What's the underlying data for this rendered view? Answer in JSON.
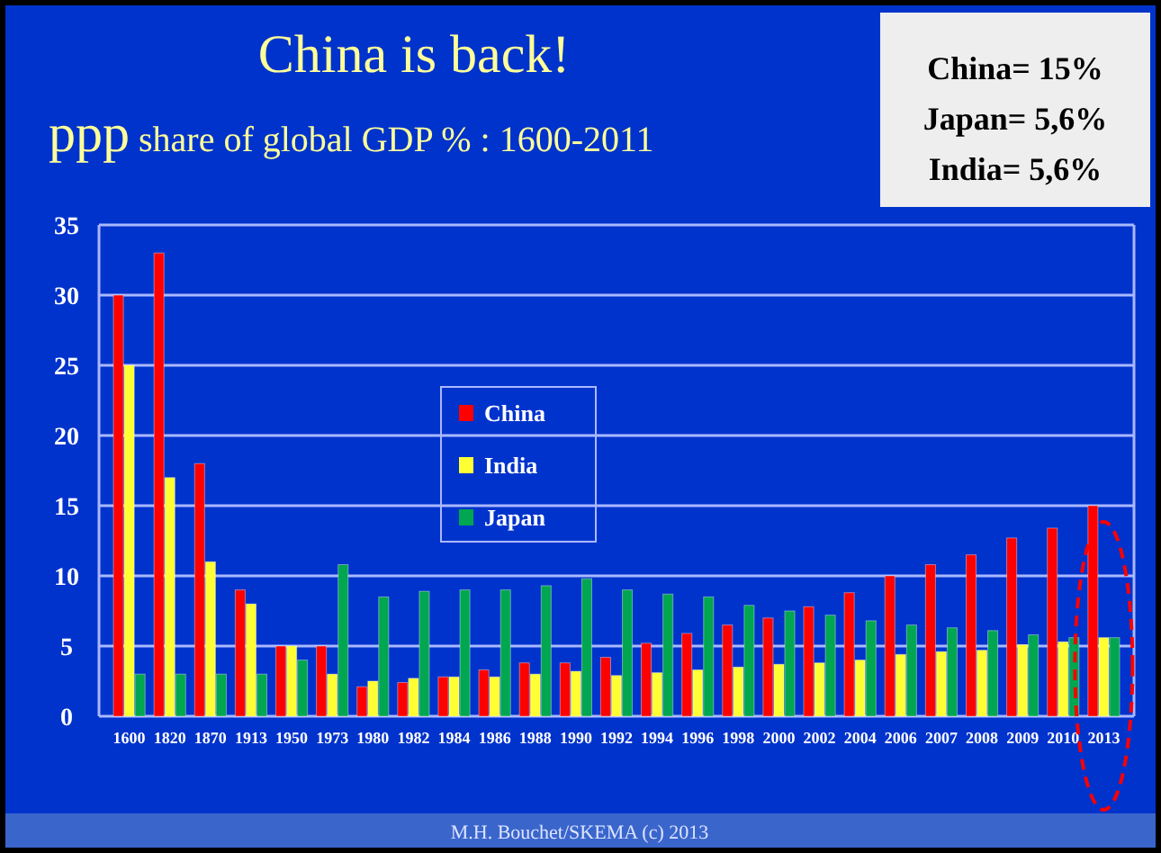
{
  "chart_data": {
    "type": "bar",
    "title": "China is back!",
    "subtitle": "ppp share of global GDP % : 1600-2011",
    "categories": [
      "1600",
      "1820",
      "1870",
      "1913",
      "1950",
      "1973",
      "1980",
      "1982",
      "1984",
      "1986",
      "1988",
      "1990",
      "1992",
      "1994",
      "1996",
      "1998",
      "2000",
      "2002",
      "2004",
      "2006",
      "2007",
      "2008",
      "2009",
      "2010",
      "2013"
    ],
    "series": [
      {
        "name": "China",
        "color": "#ff0000",
        "values": [
          30,
          33,
          18,
          9,
          5,
          5,
          2.1,
          2.4,
          2.8,
          3.3,
          3.8,
          3.8,
          4.2,
          5.2,
          5.9,
          6.5,
          7,
          7.8,
          8.8,
          10,
          10.8,
          11.5,
          12.7,
          13.4,
          15
        ]
      },
      {
        "name": "India",
        "color": "#ffff33",
        "values": [
          25,
          17,
          11,
          8,
          5,
          3,
          2.5,
          2.7,
          2.8,
          2.8,
          3,
          3.2,
          2.9,
          3.1,
          3.3,
          3.5,
          3.7,
          3.8,
          4,
          4.4,
          4.6,
          4.7,
          5.1,
          5.3,
          5.6
        ]
      },
      {
        "name": "Japan",
        "color": "#00a650",
        "values": [
          3,
          3,
          3,
          3,
          4,
          10.8,
          8.5,
          8.9,
          9,
          9,
          9.3,
          9.8,
          9,
          8.7,
          8.5,
          7.9,
          7.5,
          7.2,
          6.8,
          6.5,
          6.3,
          6.1,
          5.8,
          5.6,
          5.6
        ]
      }
    ],
    "ylim": [
      0,
      35
    ],
    "yticks": [
      0,
      5,
      10,
      15,
      20,
      25,
      30,
      35
    ],
    "grid": "y",
    "legend": "center",
    "annotations": [
      "China= 15%",
      "Japan= 5,6%",
      "India= 5,6%",
      "M.H. Bouchet/SKEMA (c) 2013"
    ]
  }
}
